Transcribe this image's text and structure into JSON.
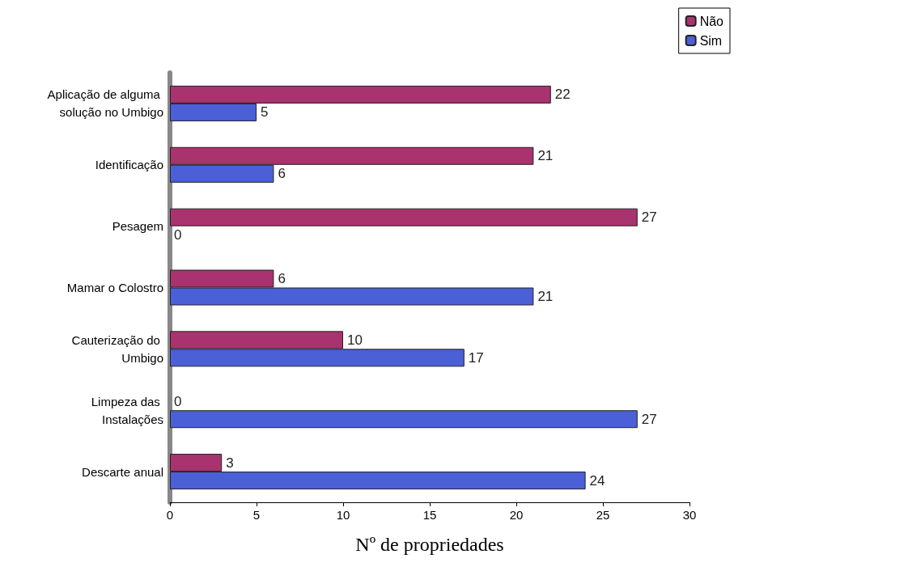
{
  "chart_data": {
    "type": "bar",
    "orientation": "horizontal",
    "xlabel": "Nº de propriedades",
    "categories": [
      "Aplicação de alguma solução no Umbigo",
      "Identificação",
      "Pesagem",
      "Mamar o Colostro",
      "Cauterização do Umbigo",
      "Limpeza das Instalações",
      "Descarte anual"
    ],
    "series": [
      {
        "name": "Não",
        "color": "#a8336e",
        "values": [
          22,
          21,
          27,
          6,
          10,
          0,
          3
        ]
      },
      {
        "name": "Sim",
        "color": "#4b5fd6",
        "values": [
          5,
          6,
          0,
          21,
          17,
          27,
          24
        ]
      }
    ],
    "xlim": [
      0,
      30
    ],
    "xticks": [
      0,
      5,
      10,
      15,
      20,
      25,
      30
    ],
    "grid": false,
    "legend": "top right",
    "data_labels": true
  }
}
